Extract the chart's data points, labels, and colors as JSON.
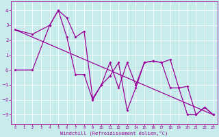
{
  "xlabel": "Windchill (Refroidissement éolien,°C)",
  "background_color": "#c8ecec",
  "grid_color": "#b0d8d8",
  "line_color": "#990099",
  "xlim": [
    -0.5,
    23.5
  ],
  "ylim": [
    -3.6,
    4.6
  ],
  "xticks": [
    0,
    1,
    2,
    3,
    4,
    5,
    6,
    7,
    8,
    9,
    10,
    11,
    12,
    13,
    14,
    15,
    16,
    17,
    18,
    19,
    20,
    21,
    22,
    23
  ],
  "yticks": [
    -3,
    -2,
    -1,
    0,
    1,
    2,
    3,
    4
  ],
  "series1_x": [
    0,
    2,
    4,
    5,
    6,
    7,
    8,
    9,
    10,
    11,
    12,
    13,
    14,
    15,
    16,
    17,
    18,
    19,
    20,
    21,
    22,
    23
  ],
  "series1_y": [
    2.7,
    2.4,
    3.0,
    4.0,
    3.5,
    2.2,
    2.6,
    -1.9,
    -1.0,
    -0.4,
    0.5,
    -2.7,
    -1.2,
    0.5,
    0.6,
    0.5,
    0.7,
    -1.2,
    -1.1,
    -3.0,
    -2.5,
    -3.0
  ],
  "series2_x": [
    0,
    2,
    4,
    5,
    6,
    7,
    8,
    9,
    10,
    11,
    12,
    13,
    14,
    15,
    16,
    17,
    18,
    19,
    20,
    21,
    22,
    23
  ],
  "series2_y": [
    0.0,
    0.0,
    3.0,
    4.0,
    2.2,
    -0.3,
    -0.3,
    -2.0,
    -1.0,
    0.5,
    -1.2,
    0.5,
    -1.0,
    0.5,
    0.6,
    0.5,
    -1.2,
    -1.2,
    -3.0,
    -3.0,
    -2.5,
    -3.0
  ],
  "trend_x": [
    0,
    23
  ],
  "trend_y": [
    2.7,
    -3.0
  ]
}
